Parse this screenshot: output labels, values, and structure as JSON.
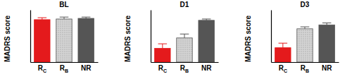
{
  "chart_data": [
    {
      "type": "bar",
      "title": "BL",
      "ylabel": "MADRS score",
      "categories": [
        "RC",
        "RB",
        "NR"
      ],
      "values": [
        32.5,
        33,
        33.5
      ],
      "errors": [
        1.5,
        1.5,
        1
      ],
      "colors": [
        "#e41a1c",
        "#d4d4d4",
        "#555555"
      ],
      "ylim": [
        0,
        40
      ],
      "tick_labels": "x"
    },
    {
      "type": "bar",
      "title": "D1",
      "ylabel": "MADRS score",
      "categories": [
        "RC",
        "RB",
        "NR"
      ],
      "values": [
        10.5,
        18.5,
        32
      ],
      "errors": [
        3.5,
        3,
        1
      ],
      "colors": [
        "#e41a1c",
        "#d4d4d4",
        "#555555"
      ],
      "ylim": [
        0,
        40
      ],
      "tick_labels": "x"
    },
    {
      "type": "bar",
      "title": "D3",
      "ylabel": "MADRS score",
      "categories": [
        "RC",
        "RB",
        "NR"
      ],
      "values": [
        11,
        25.5,
        28.5
      ],
      "errors": [
        3.5,
        1.5,
        1.5
      ],
      "colors": [
        "#e41a1c",
        "#d4d4d4",
        "#555555"
      ],
      "ylim": [
        0,
        40
      ],
      "tick_labels": "x"
    }
  ]
}
